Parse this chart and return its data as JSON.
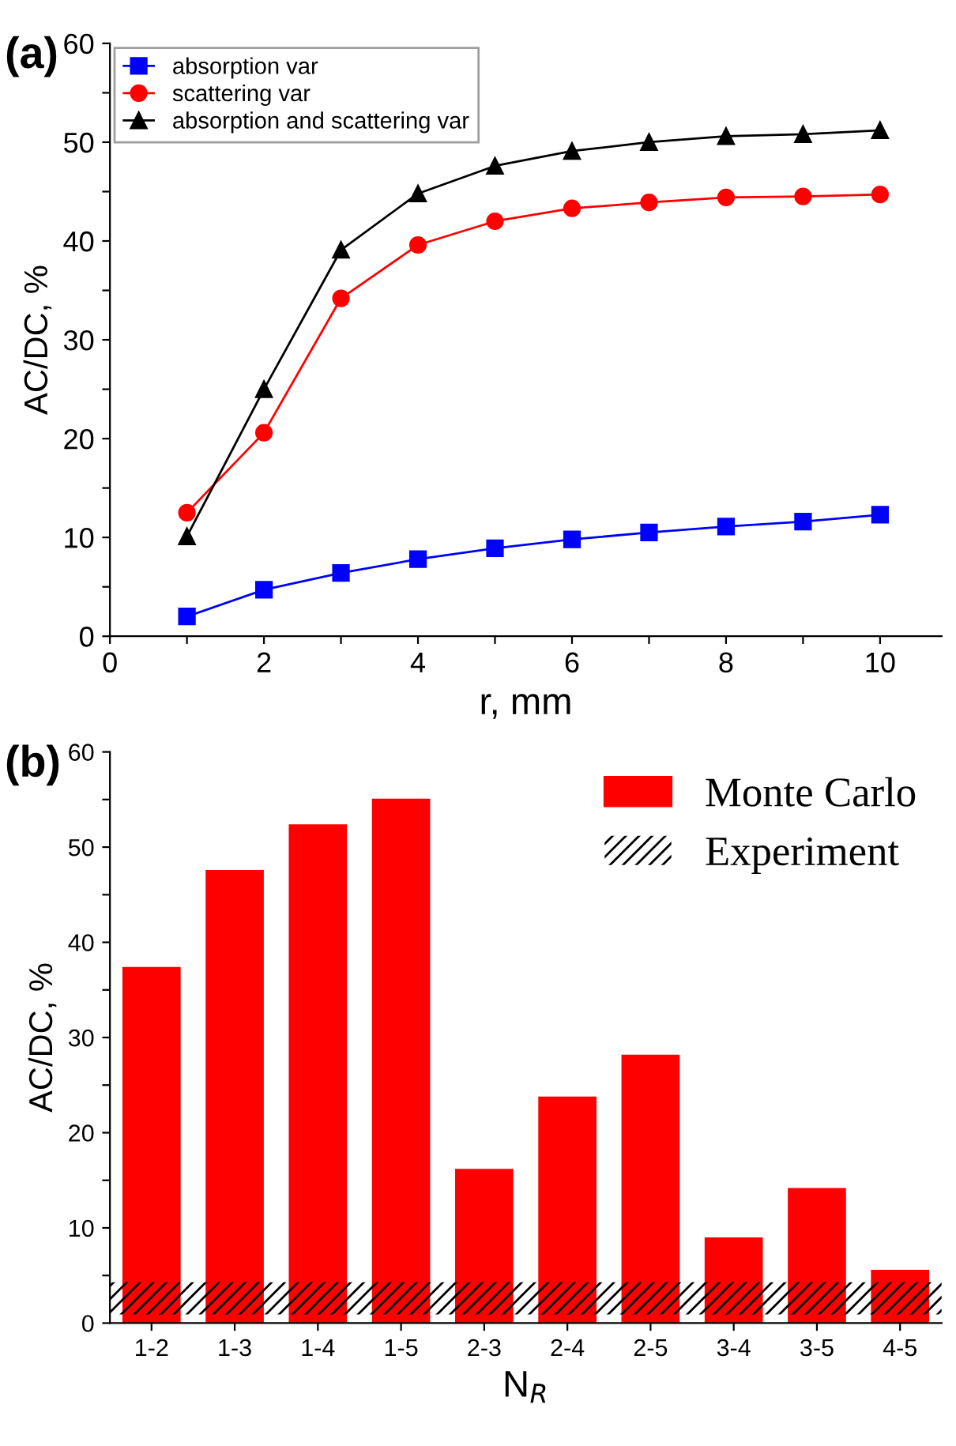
{
  "chart_data": [
    {
      "type": "line",
      "annotations": [
        "(a)"
      ],
      "xlabel": "r, mm",
      "ylabel": "AC/DC, %",
      "x": [
        1,
        2,
        3,
        4,
        5,
        6,
        7,
        8,
        9,
        10
      ],
      "series": [
        {
          "name": "absorption var",
          "color": "#0000ff",
          "marker": "square",
          "values": [
            2.0,
            4.7,
            6.4,
            7.8,
            8.9,
            9.8,
            10.5,
            11.1,
            11.6,
            12.3
          ]
        },
        {
          "name": "scattering var",
          "color": "#ff0000",
          "marker": "circle",
          "values": [
            12.5,
            20.6,
            34.2,
            39.6,
            42.0,
            43.3,
            43.9,
            44.4,
            44.5,
            44.7
          ]
        },
        {
          "name": "absorption and scattering var",
          "color": "#000000",
          "marker": "triangle",
          "values": [
            10.1,
            25.0,
            39.1,
            44.8,
            47.6,
            49.1,
            50.0,
            50.6,
            50.8,
            51.2
          ]
        }
      ],
      "xlim": [
        0,
        10.8
      ],
      "xticks": [
        0,
        {
          "value": 1,
          "label": null
        },
        2,
        {
          "value": 3,
          "label": null
        },
        4,
        {
          "value": 5,
          "label": null
        },
        6,
        {
          "value": 7,
          "label": null
        },
        8,
        {
          "value": 9,
          "label": null
        },
        10
      ],
      "ylim": [
        0,
        60
      ],
      "yticks": [
        0,
        {
          "value": 5,
          "label": null
        },
        10,
        {
          "value": 15,
          "label": null
        },
        20,
        {
          "value": 25,
          "label": null
        },
        30,
        {
          "value": 35,
          "label": null
        },
        40,
        {
          "value": 45,
          "label": null
        },
        50,
        {
          "value": 55,
          "label": null
        },
        60
      ],
      "grid": false,
      "legend": "top left",
      "line_style": "solid"
    },
    {
      "type": "bar",
      "annotations": [
        "(b)"
      ],
      "xlabel": "N$_{R}$",
      "ylabel": "AC/DC, %",
      "categories": [
        "1-2",
        "1-3",
        "1-4",
        "1-5",
        "2-3",
        "2-4",
        "2-5",
        "3-4",
        "3-5",
        "4-5"
      ],
      "series": [
        {
          "name": "Monte Carlo",
          "color": "#ff0000",
          "values": [
            37.4,
            47.6,
            52.4,
            55.1,
            16.2,
            23.8,
            28.2,
            9.0,
            14.2,
            5.6
          ]
        }
      ],
      "bands": [
        {
          "axis": "y",
          "from": 0.9,
          "to": 4.3,
          "label": "Experiment",
          "color": "#000000"
        }
      ],
      "ylim": [
        0,
        60
      ],
      "yticks": [
        0,
        {
          "value": 5,
          "label": null
        },
        10,
        {
          "value": 15,
          "label": null
        },
        20,
        {
          "value": 25,
          "label": null
        },
        30,
        {
          "value": 35,
          "label": null
        },
        40,
        {
          "value": 45,
          "label": null
        },
        50,
        {
          "value": 55,
          "label": null
        },
        60
      ],
      "grid": false,
      "legend": "top right"
    }
  ]
}
